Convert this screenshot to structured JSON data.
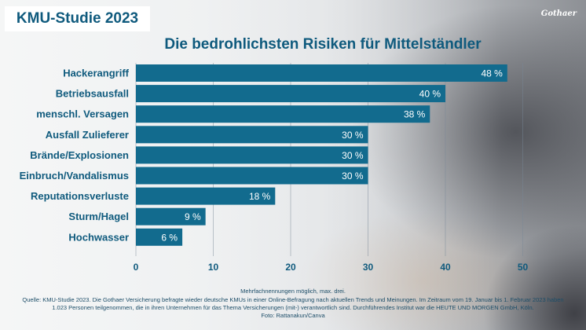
{
  "header": {
    "badge": "KMU-Studie 2023",
    "logo": "Gothaer"
  },
  "chart_data": {
    "type": "bar",
    "orientation": "horizontal",
    "title": "Die bedrohlichsten Risiken für Mittelständler",
    "categories": [
      "Hackerangriff",
      "Betriebsausfall",
      "menschl. Versagen",
      "Ausfall Zulieferer",
      "Brände/Explosionen",
      "Einbruch/Vandalismus",
      "Reputationsverluste",
      "Sturm/Hagel",
      "Hochwasser"
    ],
    "values": [
      48,
      40,
      38,
      30,
      30,
      30,
      18,
      9,
      6
    ],
    "value_labels": [
      "48 %",
      "40 %",
      "38 %",
      "30 %",
      "30 %",
      "30 %",
      "18 %",
      "9 %",
      "6 %"
    ],
    "xlim": [
      0,
      50
    ],
    "xticks": [
      "0",
      "10",
      "20",
      "30",
      "40",
      "50"
    ],
    "grid": true,
    "bar_color": "#126b8e"
  },
  "footer": {
    "note": "Mehrfachnennungen möglich, max. drei.",
    "source_line1": "Quelle: KMU-Studie 2023. Die Gothaer Versicherung befragte wieder deutsche KMUs in einer Online-Befragung nach aktuellen Trends und Meinungen. Im Zeitraum vom 19. Januar bis 1. Februar 2023 haben",
    "source_line2": "1.023 Personen teilgenommen, die in ihren Unternehmen für das Thema Versicherungen (mit-) verantwortlich sind. Durchführendes Institut war die HEUTE UND MORGEN GmbH, Köln.",
    "photo": "Foto: Rattanakun/Canva"
  }
}
